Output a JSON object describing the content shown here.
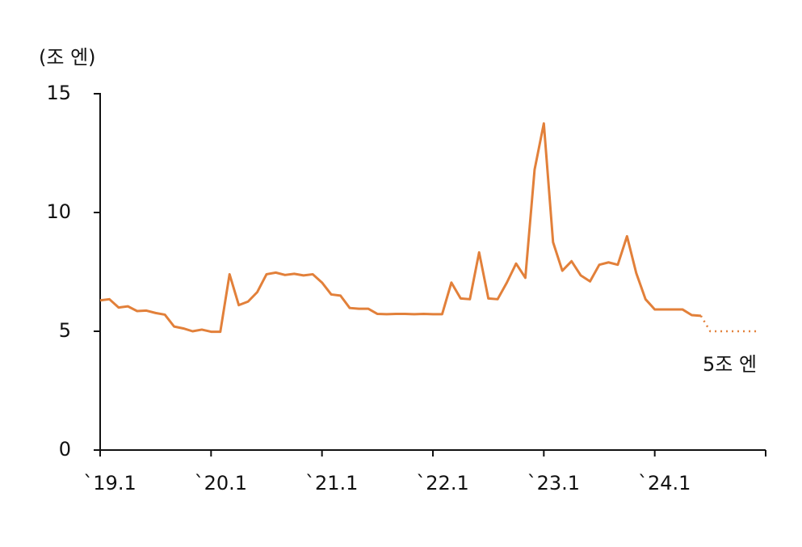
{
  "chart_data": {
    "type": "line",
    "y_axis_label": "(조 엔)",
    "annotation": "5조 엔",
    "categories": [
      "`19.1",
      null,
      null,
      null,
      null,
      null,
      null,
      null,
      null,
      null,
      null,
      null,
      "`20.1",
      null,
      null,
      null,
      null,
      null,
      null,
      null,
      null,
      null,
      null,
      null,
      "`21.1",
      null,
      null,
      null,
      null,
      null,
      null,
      null,
      null,
      null,
      null,
      null,
      "`22.1",
      null,
      null,
      null,
      null,
      null,
      null,
      null,
      null,
      null,
      null,
      null,
      "`23.1",
      null,
      null,
      null,
      null,
      null,
      null,
      null,
      null,
      null,
      null,
      null,
      "`24.1",
      null,
      null,
      null,
      null,
      null,
      null,
      null,
      null,
      null,
      null,
      null
    ],
    "series": [
      {
        "color": "#e2803a",
        "style": "solid",
        "values": [
          6.3,
          6.35,
          6.0,
          6.05,
          5.85,
          5.87,
          5.77,
          5.7,
          5.2,
          5.12,
          5.0,
          5.07,
          4.98,
          4.98,
          7.4,
          6.1,
          6.25,
          6.65,
          7.4,
          7.47,
          7.37,
          7.42,
          7.35,
          7.4,
          7.05,
          6.55,
          6.5,
          5.98,
          5.95,
          5.95,
          5.73,
          5.72,
          5.73,
          5.73,
          5.72,
          5.73,
          5.72,
          5.72,
          7.05,
          6.38,
          6.35,
          8.32,
          6.38,
          6.35,
          7.05,
          7.85,
          7.25,
          11.8,
          13.75,
          8.75,
          7.55,
          7.95,
          7.35,
          7.1,
          7.8,
          7.9,
          7.8,
          9.0,
          7.45,
          6.35,
          5.92,
          5.92,
          5.92,
          5.92,
          5.68,
          5.65,
          null,
          null,
          null,
          null,
          null,
          null
        ]
      },
      {
        "color": "#e2803a",
        "style": "dotted",
        "values": [
          null,
          null,
          null,
          null,
          null,
          null,
          null,
          null,
          null,
          null,
          null,
          null,
          null,
          null,
          null,
          null,
          null,
          null,
          null,
          null,
          null,
          null,
          null,
          null,
          null,
          null,
          null,
          null,
          null,
          null,
          null,
          null,
          null,
          null,
          null,
          null,
          null,
          null,
          null,
          null,
          null,
          null,
          null,
          null,
          null,
          null,
          null,
          null,
          null,
          null,
          null,
          null,
          null,
          null,
          null,
          null,
          null,
          null,
          null,
          null,
          null,
          null,
          null,
          null,
          null,
          5.65,
          5.0,
          5.0,
          5.0,
          5.0,
          5.0,
          5.0
        ]
      }
    ],
    "ylim": [
      0,
      15
    ],
    "yticks": [
      0,
      5,
      10,
      15
    ]
  }
}
